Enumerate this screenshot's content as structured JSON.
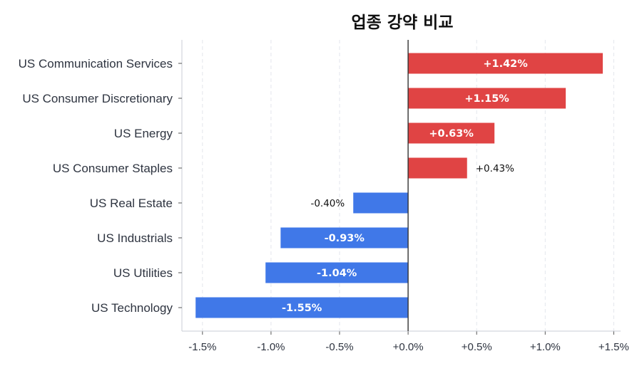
{
  "chart_data": {
    "type": "bar",
    "orientation": "horizontal",
    "title": "업종 강약 비교",
    "xlabel": "",
    "ylabel": "",
    "categories": [
      "US Communication Services",
      "US Consumer Discretionary",
      "US Energy",
      "US Consumer Staples",
      "US Real Estate",
      "US Industrials",
      "US Utilities",
      "US Technology"
    ],
    "values": [
      1.42,
      1.15,
      0.63,
      0.43,
      -0.4,
      -0.93,
      -1.04,
      -1.55
    ],
    "value_labels": [
      "+1.42%",
      "+1.15%",
      "+0.63%",
      "+0.43%",
      "-0.40%",
      "-0.93%",
      "-1.04%",
      "-1.55%"
    ],
    "xlim": [
      -1.65,
      1.55
    ],
    "xticks": [
      -1.5,
      -1.0,
      -0.5,
      0.0,
      0.5,
      1.0,
      1.5
    ],
    "xtick_labels": [
      "-1.5%",
      "-1.0%",
      "-0.5%",
      "+0.0%",
      "+0.5%",
      "+1.0%",
      "+1.5%"
    ],
    "grid": "vertical dashed",
    "legend": "none",
    "colors": {
      "positive": "#e04444",
      "negative": "#4078e8",
      "zero_line": "#333333",
      "grid": "#e3e6ec"
    }
  }
}
